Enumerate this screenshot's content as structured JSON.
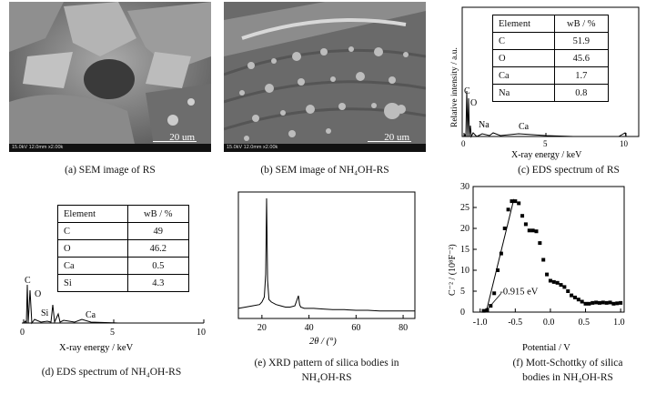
{
  "captions": {
    "a": "(a) SEM image of RS",
    "b": "(b) SEM image of NH₄OH-RS",
    "c": "(c) EDS spectrum of RS",
    "d": "(d) EDS spectrum of NH₄OH-RS",
    "e1": "(e) XRD pattern of silica bodies in",
    "e2": "NH₄OH-RS",
    "f1": "(f) Mott-Schottky of silica",
    "f2": "bodies in NH₄OH-RS"
  },
  "sem": {
    "a_scale": "20 um",
    "b_scale": "20 um",
    "strip": "15.0kV 12.0mm x2.00k"
  },
  "eds_rs": {
    "table_header": [
      "Element",
      "wB / %"
    ],
    "rows": [
      [
        "C",
        "51.9"
      ],
      [
        "O",
        "45.6"
      ],
      [
        "Ca",
        "1.7"
      ],
      [
        "Na",
        "0.8"
      ]
    ],
    "peak_labels": [
      "C",
      "O",
      "Na",
      "Ca"
    ],
    "xlabel": "X-ray energy / keV",
    "ylabel": "Relative intensity / a.u.",
    "xticks": [
      "0",
      "5",
      "10"
    ]
  },
  "eds_nh": {
    "table_header": [
      "Element",
      "wB / %"
    ],
    "rows": [
      [
        "C",
        "49"
      ],
      [
        "O",
        "46.2"
      ],
      [
        "Ca",
        "0.5"
      ],
      [
        "Si",
        "4.3"
      ]
    ],
    "peak_labels": [
      "C",
      "O",
      "Si",
      "Ca"
    ],
    "xlabel": "X-ray energy / keV",
    "xticks": [
      "0",
      "5",
      "10"
    ]
  },
  "chart_data": [
    {
      "type": "line",
      "name": "xrd",
      "xlabel": "2θ / (°)",
      "xticks": [
        20,
        40,
        60,
        80
      ],
      "xlim": [
        10,
        85
      ],
      "x": [
        10,
        13,
        16,
        19,
        20,
        21,
        21.6,
        22,
        22.4,
        23,
        24,
        26,
        28,
        30,
        32,
        34,
        35.5,
        36,
        36.5,
        38,
        42,
        46,
        50,
        55,
        60,
        65,
        70,
        75,
        80,
        85
      ],
      "values": [
        0.08,
        0.09,
        0.1,
        0.11,
        0.13,
        0.17,
        0.35,
        0.95,
        0.3,
        0.15,
        0.13,
        0.11,
        0.1,
        0.09,
        0.09,
        0.1,
        0.18,
        0.11,
        0.09,
        0.08,
        0.08,
        0.075,
        0.07,
        0.07,
        0.065,
        0.065,
        0.06,
        0.06,
        0.06,
        0.06
      ]
    },
    {
      "type": "scatter",
      "name": "mott-schottky",
      "xlabel": "Potential / V",
      "ylabel": "C⁻² / (10⁸F⁻²)",
      "xticks": [
        "-1.0",
        "-0.5",
        "0.0",
        "0.5",
        "1.0"
      ],
      "yticks": [
        "0",
        "5",
        "10",
        "15",
        "20",
        "25",
        "30"
      ],
      "xlim": [
        -1.1,
        1.05
      ],
      "ylim": [
        0,
        30
      ],
      "annotation": "-0.915 eV",
      "x": [
        -0.95,
        -0.9,
        -0.85,
        -0.8,
        -0.75,
        -0.7,
        -0.65,
        -0.6,
        -0.55,
        -0.5,
        -0.45,
        -0.4,
        -0.35,
        -0.3,
        -0.25,
        -0.2,
        -0.15,
        -0.1,
        -0.05,
        0.0,
        0.05,
        0.1,
        0.15,
        0.2,
        0.25,
        0.3,
        0.35,
        0.4,
        0.45,
        0.5,
        0.55,
        0.6,
        0.65,
        0.7,
        0.75,
        0.8,
        0.85,
        0.9,
        0.95,
        1.0
      ],
      "values": [
        0.3,
        0.5,
        1.5,
        4.5,
        10,
        14,
        20,
        24.5,
        26.5,
        26.5,
        26,
        23,
        21,
        19.5,
        19.5,
        19.3,
        16.5,
        12.5,
        9,
        7.5,
        7.2,
        7,
        6.5,
        6,
        5,
        4,
        3.5,
        3,
        2.5,
        2,
        2,
        2.2,
        2.3,
        2.2,
        2.3,
        2.2,
        2.3,
        2,
        2.1,
        2.2
      ]
    }
  ]
}
